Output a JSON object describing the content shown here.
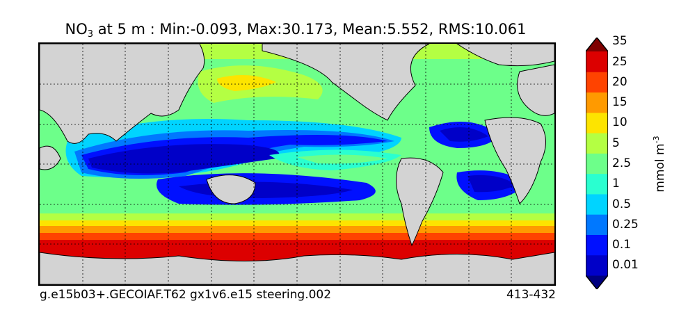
{
  "title": {
    "species": "NO",
    "subscript": "3",
    "rest": " at 5 m : Min:-0.093, Max:30.173, Mean:5.552, RMS:10.061"
  },
  "footer": {
    "case": "g.e15b03+.GECOIAF.T62 gx1v6.e15 steering.002",
    "years": "413-432"
  },
  "colorbar": {
    "unit": "mmol m",
    "unit_exp": "-3",
    "levels": [
      "0.01",
      "0.1",
      "0.25",
      "0.5",
      "1",
      "2.5",
      "5",
      "10",
      "15",
      "20",
      "25",
      "35"
    ],
    "colors": [
      "#00007f",
      "#0000c8",
      "#0010ff",
      "#0078ff",
      "#00d4ff",
      "#2affd0",
      "#6dff8a",
      "#b4ff43",
      "#fde400",
      "#ff9a00",
      "#ff4300",
      "#dc0000",
      "#7f0000"
    ]
  },
  "map_colors": {
    "land": "#d3d3d3",
    "ocean_base": "#6dff8a"
  }
}
